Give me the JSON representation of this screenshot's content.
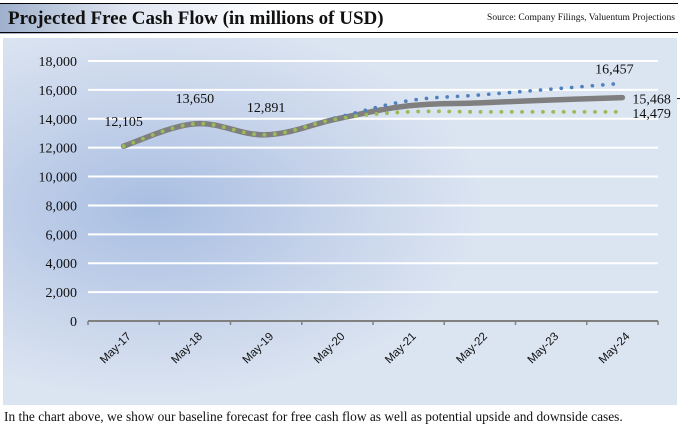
{
  "header": {
    "title": "Projected Free Cash Flow (in millions of USD)",
    "source": "Source: Company Filings, Valuentum Projections"
  },
  "caption": "In the chart above, we show our baseline forecast for free cash flow as well as potential upside and downside cases.",
  "colors": {
    "base": "#7f7f7f",
    "upside": "#4f81bd",
    "downside": "#9bbb59",
    "gridline": "#ffffff",
    "axis": "#808080"
  },
  "chart_data": {
    "type": "line",
    "title": "Projected Free Cash Flow (in millions of USD)",
    "xlabel": "",
    "ylabel": "",
    "categories": [
      "May-17",
      "May-18",
      "May-19",
      "May-20",
      "May-21",
      "May-22",
      "May-23",
      "May-24"
    ],
    "ylim": [
      0,
      18000
    ],
    "yticks": [
      0,
      2000,
      4000,
      6000,
      8000,
      10000,
      12000,
      14000,
      16000,
      18000
    ],
    "ytick_labels": [
      "0",
      "2,000",
      "4,000",
      "6,000",
      "8,000",
      "10,000",
      "12,000",
      "14,000",
      "16,000",
      "18,000"
    ],
    "grid": true,
    "legend": "none",
    "series": [
      {
        "name": "Upside",
        "style": "dotted",
        "values": [
          12105,
          13650,
          12891,
          14100,
          15250,
          15650,
          16050,
          16457
        ]
      },
      {
        "name": "Downside",
        "style": "dotted",
        "values": [
          12105,
          13650,
          12891,
          14000,
          14479,
          14479,
          14479,
          14479
        ]
      },
      {
        "name": "Base",
        "style": "solid",
        "values": [
          12105,
          13650,
          12891,
          14000,
          14900,
          15100,
          15300,
          15468
        ]
      }
    ],
    "data_labels": [
      {
        "series": "Base",
        "index": 0,
        "text": "12,105"
      },
      {
        "series": "Base",
        "index": 1,
        "text": "13,650"
      },
      {
        "series": "Base",
        "index": 2,
        "text": "12,891"
      },
      {
        "series": "Upside",
        "index": 7,
        "text": "16,457"
      },
      {
        "series": "Base",
        "index": 7,
        "text": "15,468"
      },
      {
        "series": "Downside",
        "index": 7,
        "text": "14,479"
      }
    ]
  }
}
